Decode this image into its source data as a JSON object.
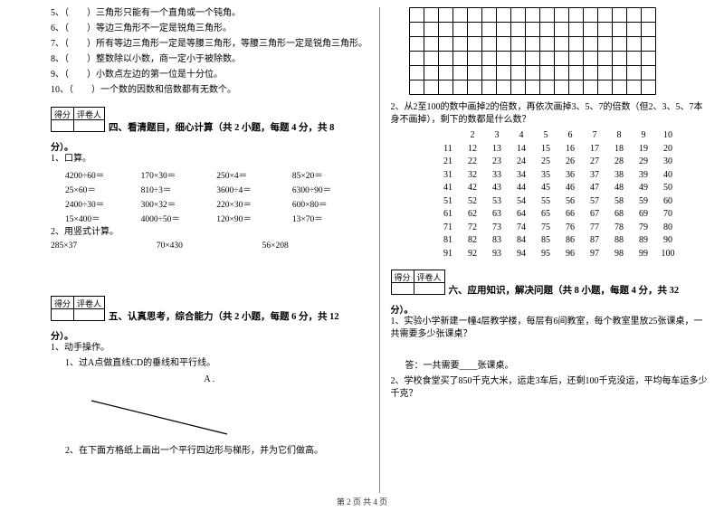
{
  "left": {
    "items": [
      "5、（　　）三角形只能有一个直角或一个钝角。",
      "6、（　　）等边三角形不一定是锐角三角形。",
      "7、（　　）所有等边三角形一定是等腰三角形，等腰三角形一定是锐角三角形。",
      "8、（　　）整数除以小数，商一定小于被除数。",
      "9、（　　）小数点左边的第一位是十分位。",
      "10、（　　）一个数的因数和倍数都有无数个。"
    ],
    "score_labels": [
      "得分",
      "评卷人"
    ],
    "sec4_title": "四、看清题目，细心计算（共 2 小题，每题 4 分，共 8",
    "sec4_close": "分）。",
    "q1": "1、口算。",
    "calc_rows": [
      [
        "4200÷60＝",
        "170×30＝",
        "250×4＝",
        "85×20＝"
      ],
      [
        "25×60＝",
        "810÷3＝",
        "3600÷4＝",
        "6300÷90＝"
      ],
      [
        "2400÷30＝",
        "300×32＝",
        "220×30＝",
        "600×80＝"
      ],
      [
        "15×400＝",
        "4000÷50＝",
        "120×90＝",
        "13×70＝"
      ]
    ],
    "q2": "2、用竖式计算。",
    "calc3": [
      "285×37",
      "70×430",
      "56×208"
    ],
    "sec5_title": "五、认真思考，综合能力（共 2 小题，每题 6 分，共 12",
    "sec5_close": "分）。",
    "q3": "1、动手操作。",
    "q3a": "1、过A点做直线CD的垂线和平行线。",
    "a_label": "A .",
    "q3b": "2、在下面方格纸上画出一个平行四边形与梯形，并为它们做高。"
  },
  "right": {
    "q2": "2、从2至100的数中画掉2的倍数，再依次画掉3、5、7的倍数（但2、3、5、7本身不画掉），剩下的数都是什么数？",
    "num_rows": [
      [
        "",
        "2",
        "3",
        "4",
        "5",
        "6",
        "7",
        "8",
        "9",
        "10"
      ],
      [
        "11",
        "12",
        "13",
        "14",
        "15",
        "16",
        "17",
        "18",
        "19",
        "20"
      ],
      [
        "21",
        "22",
        "23",
        "24",
        "25",
        "26",
        "27",
        "28",
        "29",
        "30"
      ],
      [
        "31",
        "32",
        "33",
        "34",
        "35",
        "36",
        "37",
        "38",
        "39",
        "40"
      ],
      [
        "41",
        "42",
        "43",
        "44",
        "45",
        "46",
        "47",
        "48",
        "49",
        "50"
      ],
      [
        "51",
        "52",
        "53",
        "54",
        "55",
        "56",
        "57",
        "58",
        "59",
        "60"
      ],
      [
        "61",
        "62",
        "63",
        "64",
        "65",
        "66",
        "67",
        "68",
        "69",
        "70"
      ],
      [
        "71",
        "72",
        "73",
        "74",
        "75",
        "76",
        "77",
        "78",
        "79",
        "80"
      ],
      [
        "81",
        "82",
        "83",
        "84",
        "85",
        "86",
        "87",
        "88",
        "89",
        "90"
      ],
      [
        "91",
        "92",
        "93",
        "94",
        "95",
        "96",
        "97",
        "98",
        "99",
        "100"
      ]
    ],
    "score_labels": [
      "得分",
      "评卷人"
    ],
    "sec6_title": "六、应用知识，解决问题（共 8 小题，每题 4 分，共 32",
    "sec6_close": "分）。",
    "q1_r": "1、实验小学新建一幢4层教学楼，每层有6间教室，每个教室里放25张课桌，一共需要多少张课桌？",
    "ans1": "答：一共需要____张课桌。",
    "q2_r": "2、学校食堂买了850千克大米，运走3车后，还剩100千克没运，平均每车运多少千克？"
  },
  "footer": "第 2 页 共 4 页",
  "grid": {
    "cols": 17,
    "rows": 6,
    "cell": 16,
    "stroke": "#000000"
  },
  "line_svg": {
    "w": 160,
    "h": 50,
    "stroke": "#000000"
  }
}
